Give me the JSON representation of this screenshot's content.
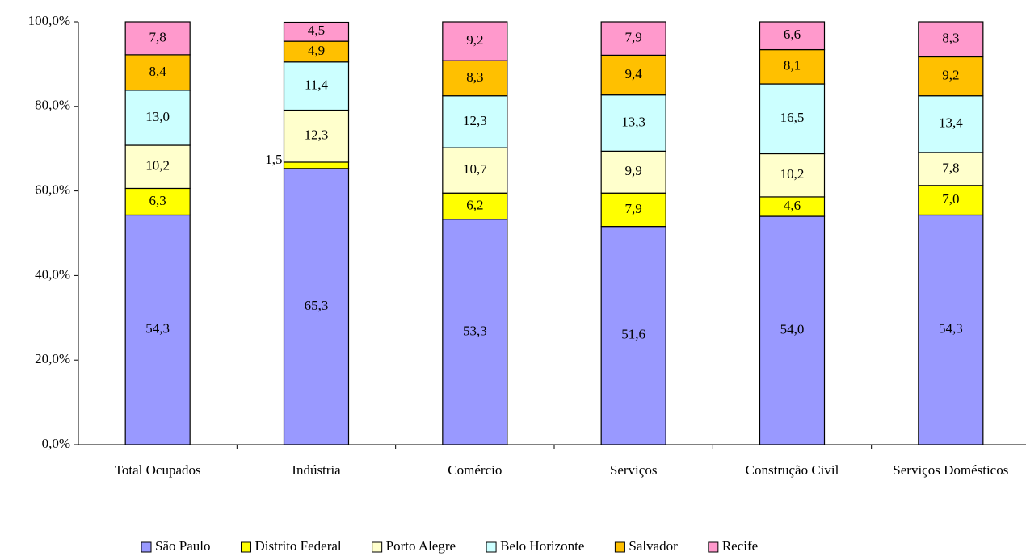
{
  "chart_data": {
    "type": "bar",
    "stacked": true,
    "categories": [
      "Total Ocupados",
      "Indústria",
      "Comércio",
      "Serviços",
      "Construção Civil",
      "Serviços Domésticos"
    ],
    "series": [
      {
        "name": "São Paulo",
        "color": "#9999ff",
        "values": [
          54.3,
          65.3,
          53.3,
          51.6,
          54.0,
          54.3
        ],
        "value_labels": [
          "54,3",
          "65,3",
          "53,3",
          "51,6",
          "54,0",
          "54,3"
        ]
      },
      {
        "name": "Distrito Federal",
        "color": "#ffff00",
        "values": [
          6.3,
          1.5,
          6.2,
          7.9,
          4.6,
          7.0
        ],
        "value_labels": [
          "6,3",
          "1,5",
          "6,2",
          "7,9",
          "4,6",
          "7,0"
        ]
      },
      {
        "name": "Porto Alegre",
        "color": "#ffffcc",
        "values": [
          10.2,
          12.3,
          10.7,
          9.9,
          10.2,
          7.8
        ],
        "value_labels": [
          "10,2",
          "12,3",
          "10,7",
          "9,9",
          "10,2",
          "7,8"
        ]
      },
      {
        "name": "Belo Horizonte",
        "color": "#ccffff",
        "values": [
          13.0,
          11.4,
          12.3,
          13.3,
          16.5,
          13.4
        ],
        "value_labels": [
          "13,0",
          "11,4",
          "12,3",
          "13,3",
          "16,5",
          "13,4"
        ]
      },
      {
        "name": "Salvador",
        "color": "#ffc000",
        "values": [
          8.4,
          4.9,
          8.3,
          9.4,
          8.1,
          9.2
        ],
        "value_labels": [
          "8,4",
          "4,9",
          "8,3",
          "9,4",
          "8,1",
          "9,2"
        ]
      },
      {
        "name": "Recife",
        "color": "#ff99cc",
        "values": [
          7.8,
          4.5,
          9.2,
          7.9,
          6.6,
          8.3
        ],
        "value_labels": [
          "7,8",
          "4,5",
          "9,2",
          "7,9",
          "6,6",
          "8,3"
        ]
      }
    ],
    "ylim": [
      0,
      100
    ],
    "yticks": [
      {
        "value": 0,
        "label": "0,0%"
      },
      {
        "value": 20,
        "label": "20,0%"
      },
      {
        "value": 40,
        "label": "40,0%"
      },
      {
        "value": 60,
        "label": "60,0%"
      },
      {
        "value": 80,
        "label": "80,0%"
      },
      {
        "value": 100,
        "label": "100,0%"
      }
    ],
    "grid": false,
    "legend": "bottom"
  }
}
